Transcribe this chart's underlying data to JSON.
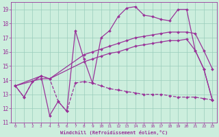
{
  "bg_color": "#cceedd",
  "grid_color": "#99ccbb",
  "line_color": "#993399",
  "xlabel": "Windchill (Refroidissement éolien,°C)",
  "xlim": [
    -0.5,
    23.5
  ],
  "ylim": [
    11,
    19.5
  ],
  "yticks": [
    11,
    12,
    13,
    14,
    15,
    16,
    17,
    18,
    19
  ],
  "xticks": [
    0,
    1,
    2,
    3,
    4,
    5,
    6,
    7,
    8,
    9,
    10,
    11,
    12,
    13,
    14,
    15,
    16,
    17,
    18,
    19,
    20,
    21,
    22,
    23
  ],
  "series": [
    {
      "x": [
        0,
        1,
        2,
        3,
        4,
        5,
        6,
        7,
        8,
        9,
        10,
        11,
        12,
        13,
        14,
        15,
        16,
        17,
        18,
        19,
        20,
        21,
        22,
        23
      ],
      "y": [
        13.6,
        12.8,
        13.9,
        14.3,
        11.5,
        12.5,
        11.8,
        17.5,
        15.5,
        13.8,
        17.0,
        17.5,
        18.5,
        19.1,
        19.2,
        18.6,
        18.5,
        18.3,
        18.2,
        19.0,
        19.0,
        16.1,
        14.8,
        12.6
      ],
      "style": "-",
      "marker": "D",
      "markersize": 2.0,
      "linewidth": 0.9
    },
    {
      "x": [
        0,
        3,
        4,
        8,
        9,
        10,
        11,
        12,
        13,
        14,
        15,
        16,
        17,
        18,
        19,
        20,
        21,
        22,
        23
      ],
      "y": [
        13.6,
        14.3,
        14.1,
        15.8,
        16.0,
        16.2,
        16.4,
        16.6,
        16.8,
        17.0,
        17.1,
        17.2,
        17.3,
        17.4,
        17.4,
        17.4,
        17.3,
        16.1,
        14.8
      ],
      "style": "-",
      "marker": "D",
      "markersize": 2.0,
      "linewidth": 0.9
    },
    {
      "x": [
        0,
        3,
        4,
        8,
        9,
        10,
        11,
        12,
        13,
        14,
        15,
        16,
        17,
        18,
        19,
        20,
        21,
        22,
        23
      ],
      "y": [
        13.6,
        14.1,
        14.1,
        15.3,
        15.5,
        15.7,
        15.9,
        16.0,
        16.2,
        16.4,
        16.5,
        16.6,
        16.7,
        16.8,
        16.8,
        16.9,
        16.1,
        14.8,
        12.6
      ],
      "style": "-",
      "marker": "D",
      "markersize": 2.0,
      "linewidth": 0.9
    },
    {
      "x": [
        0,
        1,
        2,
        3,
        4,
        5,
        6,
        7,
        8,
        9,
        10,
        11,
        12,
        13,
        14,
        15,
        16,
        17,
        18,
        19,
        20,
        21,
        22,
        23
      ],
      "y": [
        13.6,
        12.8,
        13.9,
        14.3,
        14.1,
        12.5,
        11.8,
        13.8,
        13.9,
        13.8,
        13.6,
        13.4,
        13.3,
        13.2,
        13.1,
        13.0,
        13.0,
        13.0,
        12.9,
        12.8,
        12.8,
        12.8,
        12.7,
        12.6
      ],
      "style": "--",
      "marker": "D",
      "markersize": 2.0,
      "linewidth": 0.9
    }
  ]
}
